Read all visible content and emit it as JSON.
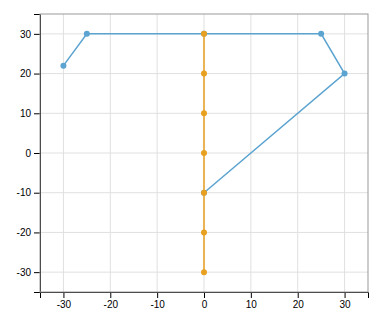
{
  "chart_data": {
    "type": "line",
    "series": [
      {
        "x": [
          -30,
          -25,
          0,
          25,
          30,
          0
        ],
        "values": [
          22,
          30,
          30,
          30,
          20,
          -10
        ],
        "color": "#5BA3D0",
        "marker": "circle"
      },
      {
        "x": [
          0,
          0,
          0,
          0,
          0,
          0,
          0
        ],
        "values": [
          30,
          20,
          10,
          0,
          -10,
          -20,
          -30
        ],
        "color": "#E8A020",
        "marker": "circle"
      }
    ],
    "xlim": [
      -35,
      35
    ],
    "ylim": [
      -35,
      35
    ],
    "xticks": [
      -30,
      -20,
      -10,
      0,
      10,
      20,
      30
    ],
    "yticks": [
      -30,
      -20,
      -10,
      0,
      10,
      20,
      30
    ],
    "grid": true
  }
}
